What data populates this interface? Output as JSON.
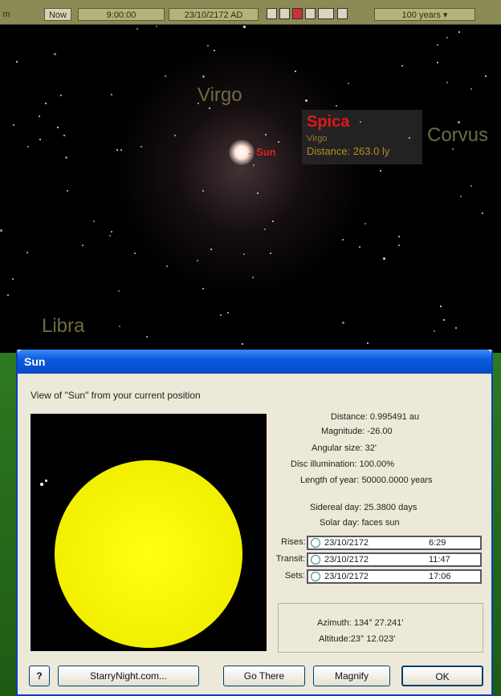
{
  "toolbar": {
    "mode": "m",
    "now": "Now",
    "time": "9:00:00",
    "date": "23/10/2172 AD",
    "time_step": "100 years ▾"
  },
  "sky_labels": {
    "virgo": "Virgo",
    "corvus": "Corvus",
    "libra": "Libra",
    "sun": "Sun"
  },
  "info_popup": {
    "name": "Spica",
    "constellation": "Virgo",
    "distance": "Distance: 263.0 ly"
  },
  "dialog": {
    "title": "Sun",
    "subtitle": "View of \"Sun\" from your current position",
    "info": [
      "Distance: 0.995491 au",
      "Magnitude: -26.00",
      "Angular size: 32'",
      "Disc illumination: 100.00%",
      "Length of year: 50000.0000 years",
      "Sidereal day: 25.3800 days",
      "Solar day: faces sun"
    ],
    "events": [
      {
        "label": "Rises:",
        "date": "23/10/2172",
        "time": "6:29"
      },
      {
        "label": "Transit:",
        "date": "23/10/2172",
        "time": "11:47"
      },
      {
        "label": "Sets:",
        "date": "23/10/2172",
        "time": "17:06"
      }
    ],
    "azimuth": "Azimuth: 134° 27.241'",
    "altitude": "Altitude:23° 12.023'",
    "buttons": [
      "StarryNight.com...",
      "Go There",
      "Magnify",
      "OK"
    ]
  }
}
